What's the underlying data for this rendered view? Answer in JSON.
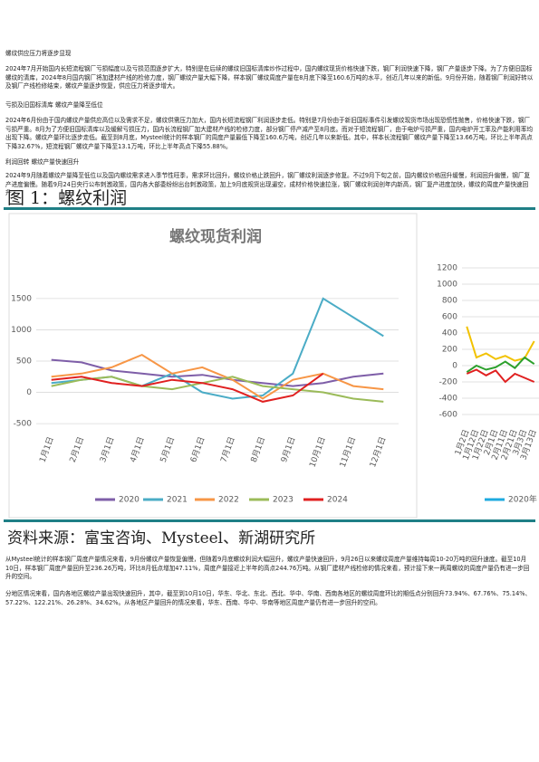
{
  "headings": [
    "螺纹供应压力将逐步显现",
    "亏损及旧国标清库 螺纹产量降至低位",
    "利润回转 螺纹产量快速回升"
  ],
  "paragraphs": [
    "2024年7月开始国内长短流程钢厂亏损幅度以及亏损范围逐步扩大，特别是在后续的螺纹旧国标清库炒作过程中，国内螺纹现货价格快速下跌，钢厂利润快速下降，钢厂产量逐步下降。为了方便旧国标螺纹的清库，2024年8月国内钢厂将加建材产线的检修力度，钢厂螺纹产量大幅下降，样本钢厂螺纹周度产量在8月底下降至160.6万吨的水平，创近几年以来的新低。9月份开始，随着钢厂利润好转以及钢厂产线检修结束，螺纹产量逐步恢复，供应压力将逐步增大。",
    "2024年6月份由于国内螺纹产量供应高位以及需求不足，螺纹供需压力加大，国内长短流程钢厂利润逐步走低。特别是7月份由于新旧国标事件引发螺纹现货市场出现恐慌性抛售，价格快速下跌，钢厂亏损严重。8月为了方便旧国标清库以及缓解亏损压力，国内长流程钢厂加大建材产线的检修力度，部分钢厂停产减产至8月底。而对于短流程钢厂，由于电炉亏损严重，国内电炉开工率及产能利用率均出现下降。螺纹产量环比逐步走低。截至到8月底，Mysteel统计的样本钢厂的周度产量最低下降至160.6万吨，创近几年以来新低。其中，样本长流程钢厂螺纹产量下降至13.66万吨，环比上半年高点下降32.67%，短流程钢厂螺纹产量下降至13.1万吨，环比上半年高点下降55.88%。",
    "2024年9月随着螺纹产量降至低位以及国内螺纹需求进入季节性旺季，需求环比回升，螺纹价格止跌回升，钢厂螺纹利润逐步修复。不过9月下旬之前，国内螺纹价格回升缓慢，利润回升偏慢，钢厂复产进度偏慢。随着9月24日央行公布刺激政策，国内各大部委纷纷出台刺激政策，加上9月底规货出现逼空，成材价格快速拉涨，钢厂螺纹利润创年内新高，钢厂复产进度加快，螺纹的周度产量快速回升。",
    "从Mysteel统计的样本钢厂周度产量情况来看，9月份螺纹产量恢复偏慢，但随着9月底螺纹利润大幅回升，螺纹产量快速回升，9月26日以来螺纹周度产量维持每周10-20万吨的回升速度。截至10月10日，样本钢厂周度产量回升至236.26万吨，环比8月低点增加47.11%，周度产量接近上半年的高点244.76万吨。从钢厂建材产线检修的情况来看，预计接下来一两周螺纹的周度产量仍有进一步回升的空间。",
    "分地区情况来看，国内各地区螺纹产量出现快速回升，其中，截至到10月10日，华东、华北、东北、西北、华中、华南、西南各地区的螺纹周度环比的期低点分别回升73.94%、67.76%、75.14%、57.22%、122.21%、26.28%、34.62%。从各地区产量回升的情况来看，华东、西南、华中、华南等地区周度产量仍有进一步回升的空间。"
  ],
  "figure": {
    "caption": "图 1：螺纹利润",
    "source": "资料来源：富宝咨询、Mysteel、新湖研究所"
  },
  "chart_data": [
    {
      "type": "line",
      "title": "螺纹现货利润",
      "categories": [
        "1月1日",
        "2月1日",
        "3月1日",
        "4月1日",
        "5月1日",
        "6月1日",
        "7月1日",
        "8月1日",
        "9月1日",
        "10月1日",
        "11月1日",
        "12月1日"
      ],
      "ylim": [
        -600,
        1600
      ],
      "yticks": [
        -500,
        0,
        500,
        1000,
        1500
      ],
      "grid": true,
      "series": [
        {
          "name": "2020",
          "color": "#7e5ea8",
          "values": [
            520,
            480,
            350,
            300,
            250,
            280,
            200,
            150,
            100,
            150,
            250,
            300
          ]
        },
        {
          "name": "2021",
          "color": "#4bacc6",
          "values": [
            150,
            200,
            250,
            100,
            300,
            0,
            -100,
            -50,
            300,
            1500,
            1200,
            900
          ]
        },
        {
          "name": "2022",
          "color": "#f79646",
          "values": [
            250,
            300,
            400,
            600,
            300,
            400,
            200,
            -100,
            200,
            300,
            100,
            50
          ]
        },
        {
          "name": "2023",
          "color": "#9bbb59",
          "values": [
            100,
            200,
            250,
            100,
            50,
            150,
            250,
            100,
            50,
            0,
            -100,
            -150
          ]
        },
        {
          "name": "2024",
          "color": "#e02020",
          "values": [
            200,
            250,
            150,
            100,
            200,
            150,
            50,
            -150,
            -50,
            300,
            null,
            null
          ]
        }
      ]
    },
    {
      "type": "line",
      "categories": [
        "1月2日",
        "1月12日",
        "1月22日",
        "2月1日",
        "2月11日",
        "2月21日",
        "3月3日",
        "3月13日"
      ],
      "ylim": [
        -700,
        1300
      ],
      "yticks": [
        -600,
        -400,
        -200,
        0,
        200,
        400,
        600,
        800,
        1000,
        1200
      ],
      "grid": true,
      "legend": [
        {
          "label": "2020年",
          "color": "#1eaadf"
        }
      ],
      "series": [
        {
          "color": "#f2c200",
          "values": [
            480,
            100,
            150,
            80,
            120,
            60,
            90,
            300
          ]
        },
        {
          "color": "#2ca02c",
          "values": [
            -80,
            0,
            -50,
            -20,
            50,
            -30,
            100,
            20
          ]
        },
        {
          "color": "#e02020",
          "values": [
            -100,
            -50,
            -120,
            -60,
            -200,
            -100,
            -150,
            -200
          ]
        }
      ]
    }
  ]
}
